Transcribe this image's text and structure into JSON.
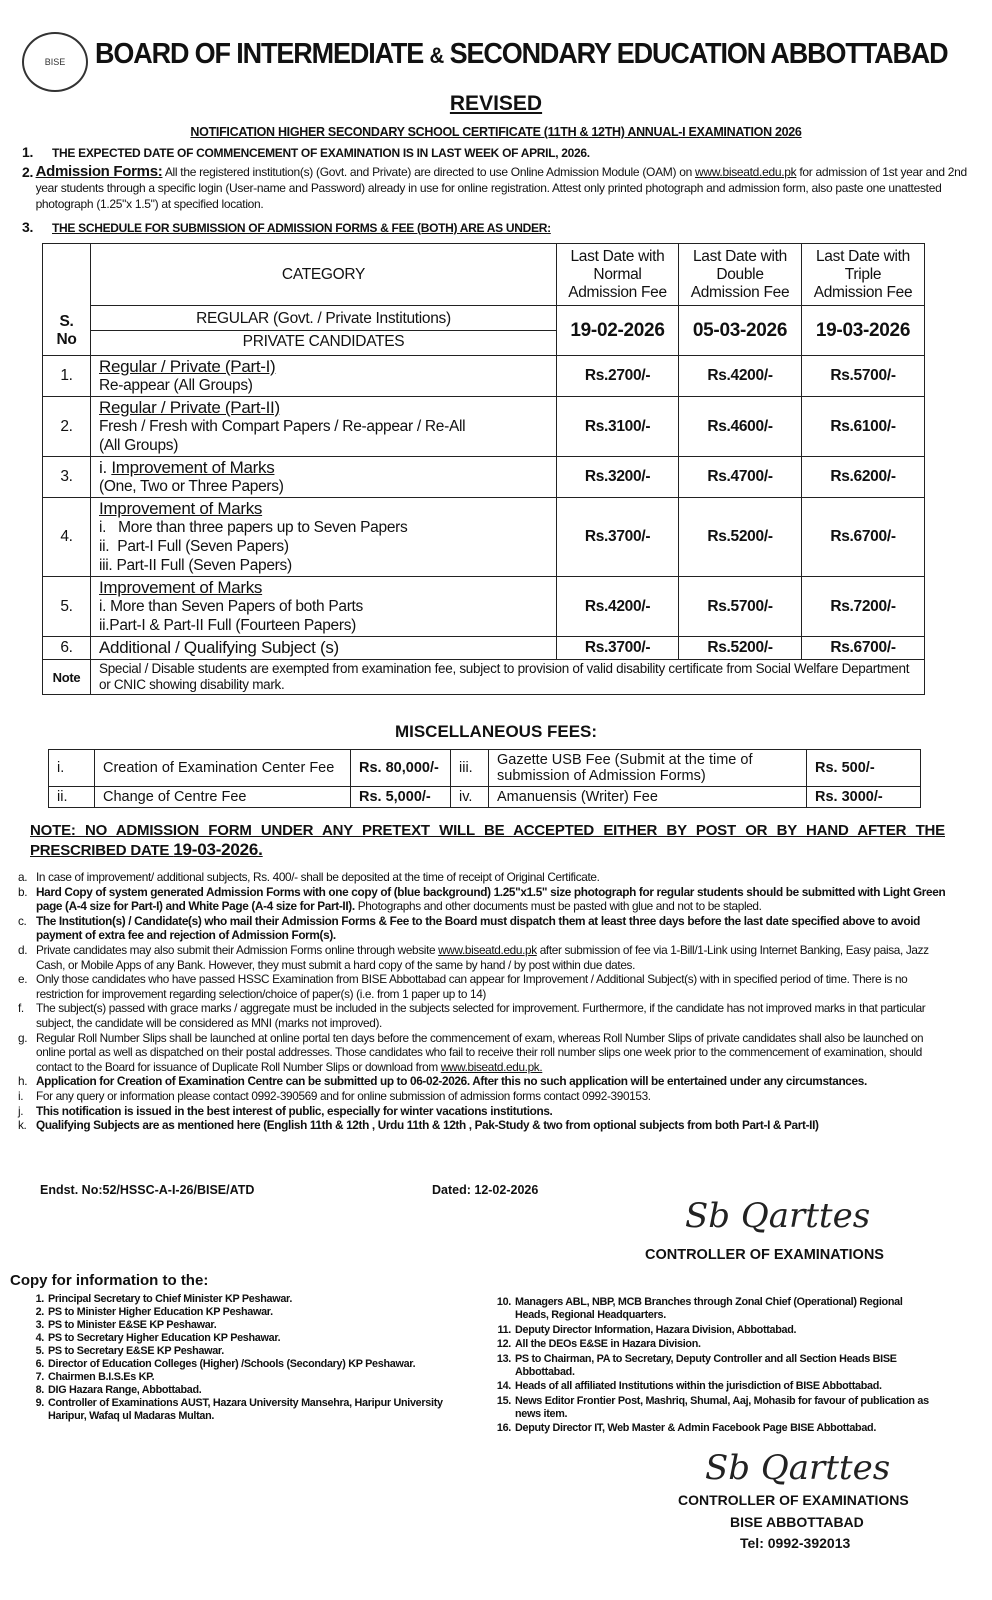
{
  "header": {
    "title_part1": "BOARD OF INTERMEDIATE",
    "amp": "&",
    "title_part2": "SECONDARY EDUCATION ABBOTTABAD",
    "logo_text": "BISE",
    "revised": "REVISED",
    "notification": "NOTIFICATION HIGHER SECONDARY SCHOOL CERTIFICATE (11TH & 12TH) ANNUAL-I EXAMINATION 2026"
  },
  "points": [
    {
      "num": "1.",
      "text": "THE EXPECTED DATE OF COMMENCEMENT OF EXAMINATION IS IN LAST WEEK OF APRIL, 2026."
    },
    {
      "num": "2.",
      "label": "Admission Forms:",
      "text": " All the registered institution(s) (Govt. and Private) are directed to use Online Admission Module (OAM) on ",
      "link": "www.biseatd.edu.pk",
      "text2": " for admission of 1st year and 2nd year students through a specific login (User-name and Password) already in use for online registration. Attest only printed photograph and admission form, also paste one unattested photograph (1.25\"x 1.5\") at specified location."
    },
    {
      "num": "3.",
      "text": "THE SCHEDULE FOR SUBMISSION OF ADMISSION FORMS & FEE (BOTH) ARE AS UNDER:"
    }
  ],
  "fee_table": {
    "headers": {
      "sno": "S. No",
      "category": "CATEGORY",
      "normal": "Last Date with Normal Admission Fee",
      "double": "Last Date with Double Admission Fee",
      "triple": "Last Date with Triple Admission Fee"
    },
    "subheader": {
      "regular": "REGULAR (Govt. / Private Institutions)",
      "private": "PRIVATE CANDIDATES",
      "dates": [
        "19-02-2026",
        "05-03-2026",
        "19-03-2026"
      ]
    },
    "rows": [
      {
        "sno": "1.",
        "title": "Regular / Private (Part-I)",
        "lines": [
          "Re-appear (All Groups)"
        ],
        "fees": [
          "Rs.2700/-",
          "Rs.4200/-",
          "Rs.5700/-"
        ]
      },
      {
        "sno": "2.",
        "title": "Regular / Private (Part-II)",
        "lines": [
          "Fresh / Fresh with Compart Papers / Re-appear / Re-All",
          "(All Groups)"
        ],
        "fees": [
          "Rs.3100/-",
          "Rs.4600/-",
          "Rs.6100/-"
        ]
      },
      {
        "sno": "3.",
        "prefix": "i. ",
        "title": "Improvement of Marks",
        "lines": [
          "(One, Two or Three Papers)"
        ],
        "fees": [
          "Rs.3200/-",
          "Rs.4700/-",
          "Rs.6200/-"
        ]
      },
      {
        "sno": "4.",
        "title": "Improvement of Marks",
        "lines": [
          "i.   More than three papers up to Seven Papers",
          "ii.  Part-I Full (Seven Papers)",
          "iii. Part-II Full (Seven Papers)"
        ],
        "fees": [
          "Rs.3700/-",
          "Rs.5200/-",
          "Rs.6700/-"
        ]
      },
      {
        "sno": "5.",
        "title": "Improvement of Marks",
        "lines": [
          "i. More than Seven Papers of both Parts",
          "ii.Part-I & Part-II Full (Fourteen Papers)"
        ],
        "fees": [
          "Rs.4200/-",
          "Rs.5700/-",
          "Rs.7200/-"
        ]
      },
      {
        "sno": "6.",
        "plain": "Additional / Qualifying Subject (s)",
        "fees": [
          "Rs.3700/-",
          "Rs.5200/-",
          "Rs.6700/-"
        ]
      }
    ],
    "note_label": "Note",
    "note": "Special / Disable students are exempted from examination fee, subject to provision of valid disability certificate from Social Welfare Department or CNIC showing disability mark."
  },
  "misc": {
    "title": "MISCELLANEOUS FEES:",
    "rows": [
      {
        "n1": "i.",
        "d1": "Creation of Examination Center Fee",
        "f1": "Rs. 80,000/-",
        "n2": "iii.",
        "d2": "Gazette USB Fee (Submit at the time of submission of Admission Forms)",
        "f2": "Rs. 500/-"
      },
      {
        "n1": "ii.",
        "d1": "Change of Centre Fee",
        "f1": "Rs. 5,000/-",
        "n2": "iv.",
        "d2": "Amanuensis (Writer) Fee",
        "f2": "Rs. 3000/-"
      }
    ]
  },
  "note": {
    "a": "NOTE: NO ADMISSION FORM UNDER ANY PRETEXT WILL BE ACCEPTED EITHER BY POST OR BY HAND AFTER THE PRESCRIBED DATE ",
    "date": "19-03-2026."
  },
  "items": [
    {
      "l": "a.",
      "t": "In case of improvement/ additional subjects, Rs. 400/- shall be deposited at the time of receipt of Original Certificate."
    },
    {
      "l": "b.",
      "b": "Hard Copy of system generated Admission Forms with one copy of (blue background) 1.25\"x1.5\" size photograph for regular students should be submitted with Light Green page (A-4 size for Part-I) and White Page (A-4 size for Part-II).",
      "t": " Photographs and other documents must be pasted with glue and not to be stapled."
    },
    {
      "l": "c.",
      "b": "The Institution(s) / Candidate(s) who mail their Admission Forms & Fee to the Board must dispatch them at least three days before the last date specified above to avoid payment of extra fee and rejection of Admission Form(s)."
    },
    {
      "l": "d.",
      "t": "Private candidates may also submit their Admission Forms online through website ",
      "link": "www.biseatd.edu.pk",
      "t2": " after submission of fee via 1-Bill/1-Link using Internet Banking, Easy paisa, Jazz Cash, or Mobile Apps of any Bank. However, they must submit a hard copy of the same by hand / by post within due dates."
    },
    {
      "l": "e.",
      "t": "Only those candidates who have passed HSSC Examination from BISE Abbottabad can appear for Improvement / Additional Subject(s) with in specified period of time. There is no restriction for improvement regarding selection/choice of paper(s) (i.e. from 1 paper up to 14)"
    },
    {
      "l": "f.",
      "t": "The subject(s) passed with grace marks / aggregate must be included in the subjects selected for improvement. Furthermore, if the candidate has not improved marks in that particular subject, the candidate will be considered as MNI (marks not improved)."
    },
    {
      "l": "g.",
      "t": "Regular Roll Number Slips shall be launched at online portal ten days before the commencement of exam, whereas Roll Number Slips of private candidates shall also be launched on online portal as well as dispatched on their postal addresses. Those candidates who fail to receive their roll number slips one week prior to the commencement of examination, should contact to the Board for issuance of Duplicate Roll Number Slips or download from ",
      "link": "www.biseatd.edu.pk."
    },
    {
      "l": "h.",
      "b": "Application for Creation of Examination Centre can be submitted up to 06-02-2026. After this no such application will be entertained under any circumstances."
    },
    {
      "l": "i.",
      "t": "For any query or information please contact 0992-390569 and for online submission of admission forms contact 0992-390153."
    },
    {
      "l": "j.",
      "b": "This notification is issued in the best interest of public, especially for winter vacations institutions."
    },
    {
      "l": "k.",
      "b": "Qualifying Subjects are as mentioned here (English 11th & 12th , Urdu 11th & 12th , Pak-Study & two from optional subjects from both Part-I & Part-II)"
    }
  ],
  "endst": "Endst. No:52/HSSC-A-I-26/BISE/ATD",
  "dated": "Dated: 12-02-2026",
  "controller": "CONTROLLER OF EXAMINATIONS",
  "signature": "Sb Qarttes",
  "copy_title": "Copy for information to the:",
  "copy_left": [
    {
      "l": "1.",
      "t": "Principal Secretary to Chief Minister KP Peshawar."
    },
    {
      "l": "2.",
      "t": "PS to Minister Higher Education KP Peshawar."
    },
    {
      "l": "3.",
      "t": "PS to Minister E&SE KP Peshawar."
    },
    {
      "l": "4.",
      "t": "PS to Secretary Higher Education KP Peshawar."
    },
    {
      "l": "5.",
      "t": "PS to Secretary E&SE KP Peshawar."
    },
    {
      "l": "6.",
      "t": "Director of Education Colleges (Higher) /Schools (Secondary) KP Peshawar."
    },
    {
      "l": "7.",
      "t": "Chairmen B.I.S.Es KP."
    },
    {
      "l": "8.",
      "t": "DIG Hazara Range, Abbottabad."
    },
    {
      "l": "9.",
      "t": "Controller of Examinations AUST, Hazara University Mansehra, Haripur University Haripur, Wafaq ul Madaras Multan."
    }
  ],
  "copy_right": [
    {
      "l": "10.",
      "t": "Managers ABL, NBP, MCB Branches through Zonal Chief (Operational) Regional Heads, Regional Headquarters."
    },
    {
      "l": "11.",
      "t": "Deputy Director Information, Hazara Division, Abbottabad."
    },
    {
      "l": "12.",
      "t": "All the DEOs E&SE in Hazara Division."
    },
    {
      "l": "13.",
      "t": "PS to Chairman, PA to Secretary, Deputy Controller and all Section Heads BISE Abbottabad."
    },
    {
      "l": "14.",
      "t": "Heads of all affiliated Institutions within the jurisdiction of BISE Abbottabad."
    },
    {
      "l": "15.",
      "t": "News Editor Frontier Post, Mashriq, Shumal, Aaj, Mohasib for favour of publication as news item."
    },
    {
      "l": "16.",
      "t": "Deputy Director IT, Web Master & Admin Facebook Page BISE Abbottabad."
    }
  ],
  "footer": {
    "controller": "CONTROLLER OF EXAMINATIONS",
    "bise": "BISE ABBOTTABAD",
    "tel": "Tel: 0992-392013"
  }
}
